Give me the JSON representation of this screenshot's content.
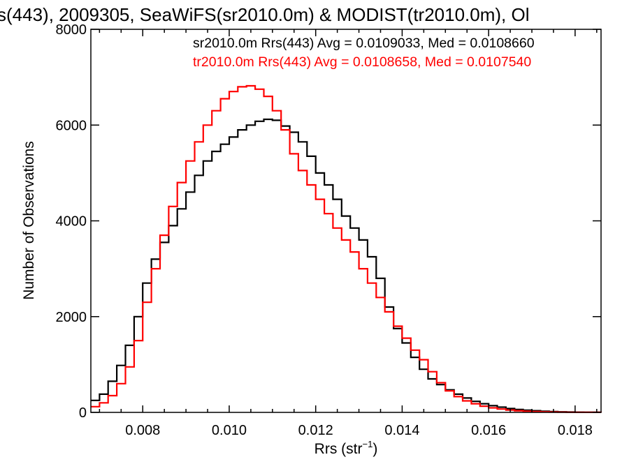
{
  "chart_data": {
    "type": "line",
    "title": "s(443), 2009305, SeaWiFS(sr2010.0m) & MODIST(tr2010.0m), Ol",
    "xlabel_main": "Rrs (str",
    "xlabel_sup": "−1",
    "xlabel_close": ")",
    "ylabel": "Number of Observations",
    "xlim": [
      0.0068,
      0.0186
    ],
    "ylim": [
      0,
      8000
    ],
    "x_ticks": [
      {
        "value": 0.008,
        "label": "0.008"
      },
      {
        "value": 0.01,
        "label": "0.010"
      },
      {
        "value": 0.012,
        "label": "0.012"
      },
      {
        "value": 0.014,
        "label": "0.014"
      },
      {
        "value": 0.016,
        "label": "0.016"
      },
      {
        "value": 0.018,
        "label": "0.018"
      }
    ],
    "y_ticks": [
      {
        "value": 0,
        "label": "0"
      },
      {
        "value": 2000,
        "label": "2000"
      },
      {
        "value": 4000,
        "label": "4000"
      },
      {
        "value": 6000,
        "label": "6000"
      },
      {
        "value": 8000,
        "label": "8000"
      }
    ],
    "grid": false,
    "legend_position": "top-right",
    "series": [
      {
        "name": "sr2010.0m",
        "legend": "sr2010.0m Rrs(443) Avg = 0.0109033, Med = 0.0108660",
        "color": "#000000",
        "style": "step",
        "points": [
          [
            0.0068,
            250
          ],
          [
            0.007,
            380
          ],
          [
            0.0072,
            650
          ],
          [
            0.0074,
            980
          ],
          [
            0.0076,
            1400
          ],
          [
            0.0078,
            2000
          ],
          [
            0.008,
            2700
          ],
          [
            0.0082,
            3200
          ],
          [
            0.0084,
            3550
          ],
          [
            0.0086,
            3900
          ],
          [
            0.0088,
            4250
          ],
          [
            0.009,
            4600
          ],
          [
            0.0092,
            4950
          ],
          [
            0.0094,
            5250
          ],
          [
            0.0096,
            5450
          ],
          [
            0.0098,
            5600
          ],
          [
            0.01,
            5750
          ],
          [
            0.0102,
            5900
          ],
          [
            0.0104,
            6000
          ],
          [
            0.0106,
            6080
          ],
          [
            0.0108,
            6120
          ],
          [
            0.011,
            6100
          ],
          [
            0.0112,
            5980
          ],
          [
            0.0114,
            5850
          ],
          [
            0.0116,
            5650
          ],
          [
            0.0118,
            5350
          ],
          [
            0.012,
            5000
          ],
          [
            0.0122,
            4750
          ],
          [
            0.0124,
            4450
          ],
          [
            0.0126,
            4100
          ],
          [
            0.0128,
            3850
          ],
          [
            0.013,
            3600
          ],
          [
            0.0132,
            3250
          ],
          [
            0.0134,
            2800
          ],
          [
            0.0136,
            2200
          ],
          [
            0.0138,
            1750
          ],
          [
            0.014,
            1450
          ],
          [
            0.0142,
            1150
          ],
          [
            0.0144,
            900
          ],
          [
            0.0146,
            700
          ],
          [
            0.0148,
            580
          ],
          [
            0.015,
            470
          ],
          [
            0.0152,
            380
          ],
          [
            0.0154,
            300
          ],
          [
            0.0156,
            230
          ],
          [
            0.0158,
            180
          ],
          [
            0.016,
            140
          ],
          [
            0.0162,
            110
          ],
          [
            0.0164,
            80
          ],
          [
            0.0166,
            60
          ],
          [
            0.0168,
            45
          ],
          [
            0.017,
            35
          ],
          [
            0.0172,
            25
          ],
          [
            0.0174,
            18
          ],
          [
            0.0176,
            12
          ],
          [
            0.0178,
            8
          ],
          [
            0.018,
            5
          ],
          [
            0.0182,
            3
          ],
          [
            0.0184,
            2
          ],
          [
            0.0186,
            1
          ]
        ]
      },
      {
        "name": "tr2010.0m",
        "legend": "tr2010.0m Rrs(443) Avg = 0.0108658, Med = 0.0107540",
        "color": "#ff0000",
        "style": "step",
        "points": [
          [
            0.0068,
            120
          ],
          [
            0.007,
            200
          ],
          [
            0.0072,
            350
          ],
          [
            0.0074,
            600
          ],
          [
            0.0076,
            950
          ],
          [
            0.0078,
            1500
          ],
          [
            0.008,
            2300
          ],
          [
            0.0082,
            3000
          ],
          [
            0.0084,
            3700
          ],
          [
            0.0086,
            4300
          ],
          [
            0.0088,
            4800
          ],
          [
            0.009,
            5250
          ],
          [
            0.0092,
            5650
          ],
          [
            0.0094,
            6000
          ],
          [
            0.0096,
            6300
          ],
          [
            0.0098,
            6550
          ],
          [
            0.01,
            6700
          ],
          [
            0.0102,
            6800
          ],
          [
            0.0104,
            6820
          ],
          [
            0.0106,
            6750
          ],
          [
            0.0108,
            6600
          ],
          [
            0.011,
            6300
          ],
          [
            0.0112,
            5900
          ],
          [
            0.0114,
            5400
          ],
          [
            0.0116,
            5050
          ],
          [
            0.0118,
            4750
          ],
          [
            0.012,
            4450
          ],
          [
            0.0122,
            4150
          ],
          [
            0.0124,
            3850
          ],
          [
            0.0126,
            3600
          ],
          [
            0.0128,
            3350
          ],
          [
            0.013,
            3000
          ],
          [
            0.0132,
            2700
          ],
          [
            0.0134,
            2400
          ],
          [
            0.0136,
            2100
          ],
          [
            0.0138,
            1800
          ],
          [
            0.014,
            1550
          ],
          [
            0.0142,
            1300
          ],
          [
            0.0144,
            1100
          ],
          [
            0.0146,
            850
          ],
          [
            0.0148,
            620
          ],
          [
            0.015,
            450
          ],
          [
            0.0152,
            330
          ],
          [
            0.0154,
            240
          ],
          [
            0.0156,
            180
          ],
          [
            0.0158,
            130
          ],
          [
            0.016,
            95
          ],
          [
            0.0162,
            70
          ],
          [
            0.0164,
            50
          ],
          [
            0.0166,
            35
          ],
          [
            0.0168,
            25
          ],
          [
            0.017,
            18
          ],
          [
            0.0172,
            12
          ],
          [
            0.0174,
            8
          ],
          [
            0.0176,
            5
          ],
          [
            0.0178,
            3
          ],
          [
            0.018,
            2
          ],
          [
            0.0182,
            1
          ],
          [
            0.0184,
            1
          ],
          [
            0.0186,
            0
          ]
        ]
      }
    ]
  }
}
